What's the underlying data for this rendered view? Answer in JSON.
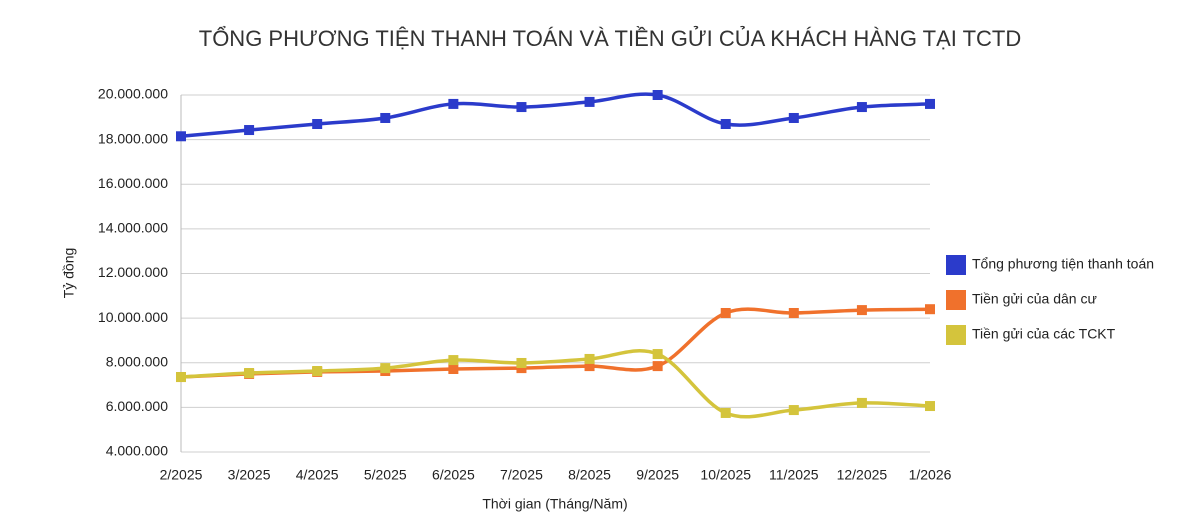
{
  "chart_data": {
    "type": "line",
    "title": "TỔNG PHƯƠNG TIỆN THANH TOÁN VÀ TIỀN GỬI CỦA KHÁCH HÀNG TẠI TCTD",
    "x_label": "Thời gian (Tháng/Năm)",
    "y_label": "Tỷ đồng",
    "categories": [
      "2/2025",
      "3/2025",
      "4/2025",
      "5/2025",
      "6/2025",
      "7/2025",
      "8/2025",
      "9/2025",
      "10/2025",
      "11/2025",
      "12/2025",
      "1/2026"
    ],
    "series": [
      {
        "name": "Tổng phương tiện thanh toán",
        "color": "#2b3bcb",
        "values": [
          18150000,
          18430000,
          18700000,
          18970000,
          19600000,
          19460000,
          19690000,
          20000000,
          18700000,
          18970000,
          19460000,
          19600000
        ]
      },
      {
        "name": "Tiền gửi của dân cư",
        "color": "#f0712c",
        "values": [
          7360000,
          7500000,
          7590000,
          7630000,
          7720000,
          7760000,
          7850000,
          7850000,
          10230000,
          10230000,
          10360000,
          10400000
        ]
      },
      {
        "name": "Tiền gửi của các TCKT",
        "color": "#d4c43c",
        "values": [
          7360000,
          7540000,
          7630000,
          7760000,
          8120000,
          7990000,
          8170000,
          8390000,
          5750000,
          5880000,
          6200000,
          6060000
        ]
      }
    ],
    "ylim": [
      4000000,
      20000000
    ],
    "yticks": [
      {
        "value": 4000000,
        "label": "4.000.000"
      },
      {
        "value": 6000000,
        "label": "6.000.000"
      },
      {
        "value": 8000000,
        "label": "8.000.000"
      },
      {
        "value": 10000000,
        "label": "10.000.000"
      },
      {
        "value": 12000000,
        "label": "12.000.000"
      },
      {
        "value": 14000000,
        "label": "14.000.000"
      },
      {
        "value": 16000000,
        "label": "16.000.000"
      },
      {
        "value": 18000000,
        "label": "18.000.000"
      },
      {
        "value": 20000000,
        "label": "20.000.000"
      }
    ],
    "grid": true,
    "smooth": true,
    "legend": "right"
  }
}
